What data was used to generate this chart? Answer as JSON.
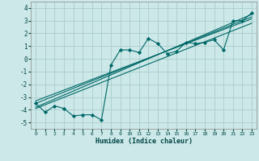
{
  "xlabel": "Humidex (Indice chaleur)",
  "background_color": "#cce8e8",
  "grid_color": "#b0d0d0",
  "line_color": "#006868",
  "xlim": [
    -0.5,
    23.5
  ],
  "ylim": [
    -5.5,
    4.5
  ],
  "yticks": [
    -5,
    -4,
    -3,
    -2,
    -1,
    0,
    1,
    2,
    3,
    4
  ],
  "xticks": [
    0,
    1,
    2,
    3,
    4,
    5,
    6,
    7,
    8,
    9,
    10,
    11,
    12,
    13,
    14,
    15,
    16,
    17,
    18,
    19,
    20,
    21,
    22,
    23
  ],
  "scatter_x": [
    0,
    1,
    2,
    3,
    4,
    5,
    6,
    7,
    8,
    9,
    10,
    11,
    12,
    13,
    14,
    15,
    16,
    17,
    18,
    19,
    20,
    21,
    22,
    23
  ],
  "scatter_y": [
    -3.5,
    -4.2,
    -3.7,
    -3.9,
    -4.5,
    -4.4,
    -4.4,
    -4.8,
    -0.5,
    0.7,
    0.7,
    0.5,
    1.6,
    1.2,
    0.4,
    0.6,
    1.3,
    1.2,
    1.3,
    1.5,
    0.7,
    3.0,
    3.0,
    3.6
  ],
  "reg_lines": [
    {
      "x": [
        0,
        23
      ],
      "y": [
        -3.8,
        3.5
      ]
    },
    {
      "x": [
        0,
        23
      ],
      "y": [
        -3.5,
        3.3
      ]
    },
    {
      "x": [
        0,
        23
      ],
      "y": [
        -3.3,
        3.15
      ]
    },
    {
      "x": [
        0,
        23
      ],
      "y": [
        -3.9,
        2.8
      ]
    }
  ]
}
